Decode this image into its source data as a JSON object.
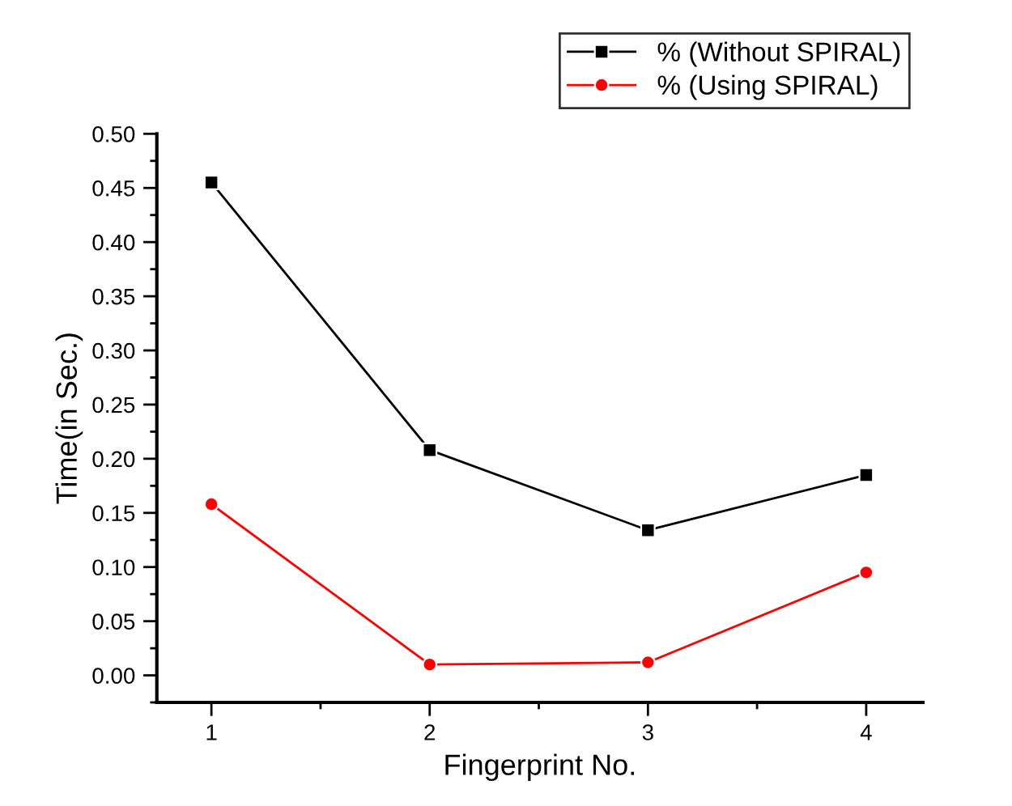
{
  "chart_data": {
    "type": "line",
    "xlabel": "Fingerprint No.",
    "ylabel": "Time(in Sec.)",
    "x": [
      1,
      2,
      3,
      4
    ],
    "series": [
      {
        "name": "% (Without SPIRAL)",
        "color": "#000000",
        "marker": "square",
        "values": [
          0.455,
          0.208,
          0.134,
          0.185
        ]
      },
      {
        "name": "% (Using SPIRAL)",
        "color": "#ff0000",
        "marker": "circle",
        "values": [
          0.158,
          0.01,
          0.012,
          0.095
        ]
      }
    ],
    "xlim": [
      0.75,
      4.26
    ],
    "xticks": [
      1,
      2,
      3,
      4
    ],
    "ylim": [
      -0.025,
      0.5
    ],
    "yticks": [
      {
        "value": 0,
        "label": "0.00"
      },
      {
        "value": 0.05,
        "label": "0.05"
      },
      {
        "value": 0.1,
        "label": "0.10"
      },
      {
        "value": 0.15,
        "label": "0.15"
      },
      {
        "value": 0.2,
        "label": "0.20"
      },
      {
        "value": 0.25,
        "label": "0.25"
      },
      {
        "value": 0.3,
        "label": "0.30"
      },
      {
        "value": 0.35,
        "label": "0.35"
      },
      {
        "value": 0.4,
        "label": "0.40"
      },
      {
        "value": 0.45,
        "label": "0.45"
      },
      {
        "value": 0.5,
        "label": "0.50"
      }
    ],
    "grid": false,
    "legend": "top right",
    "line_style": "solid"
  }
}
